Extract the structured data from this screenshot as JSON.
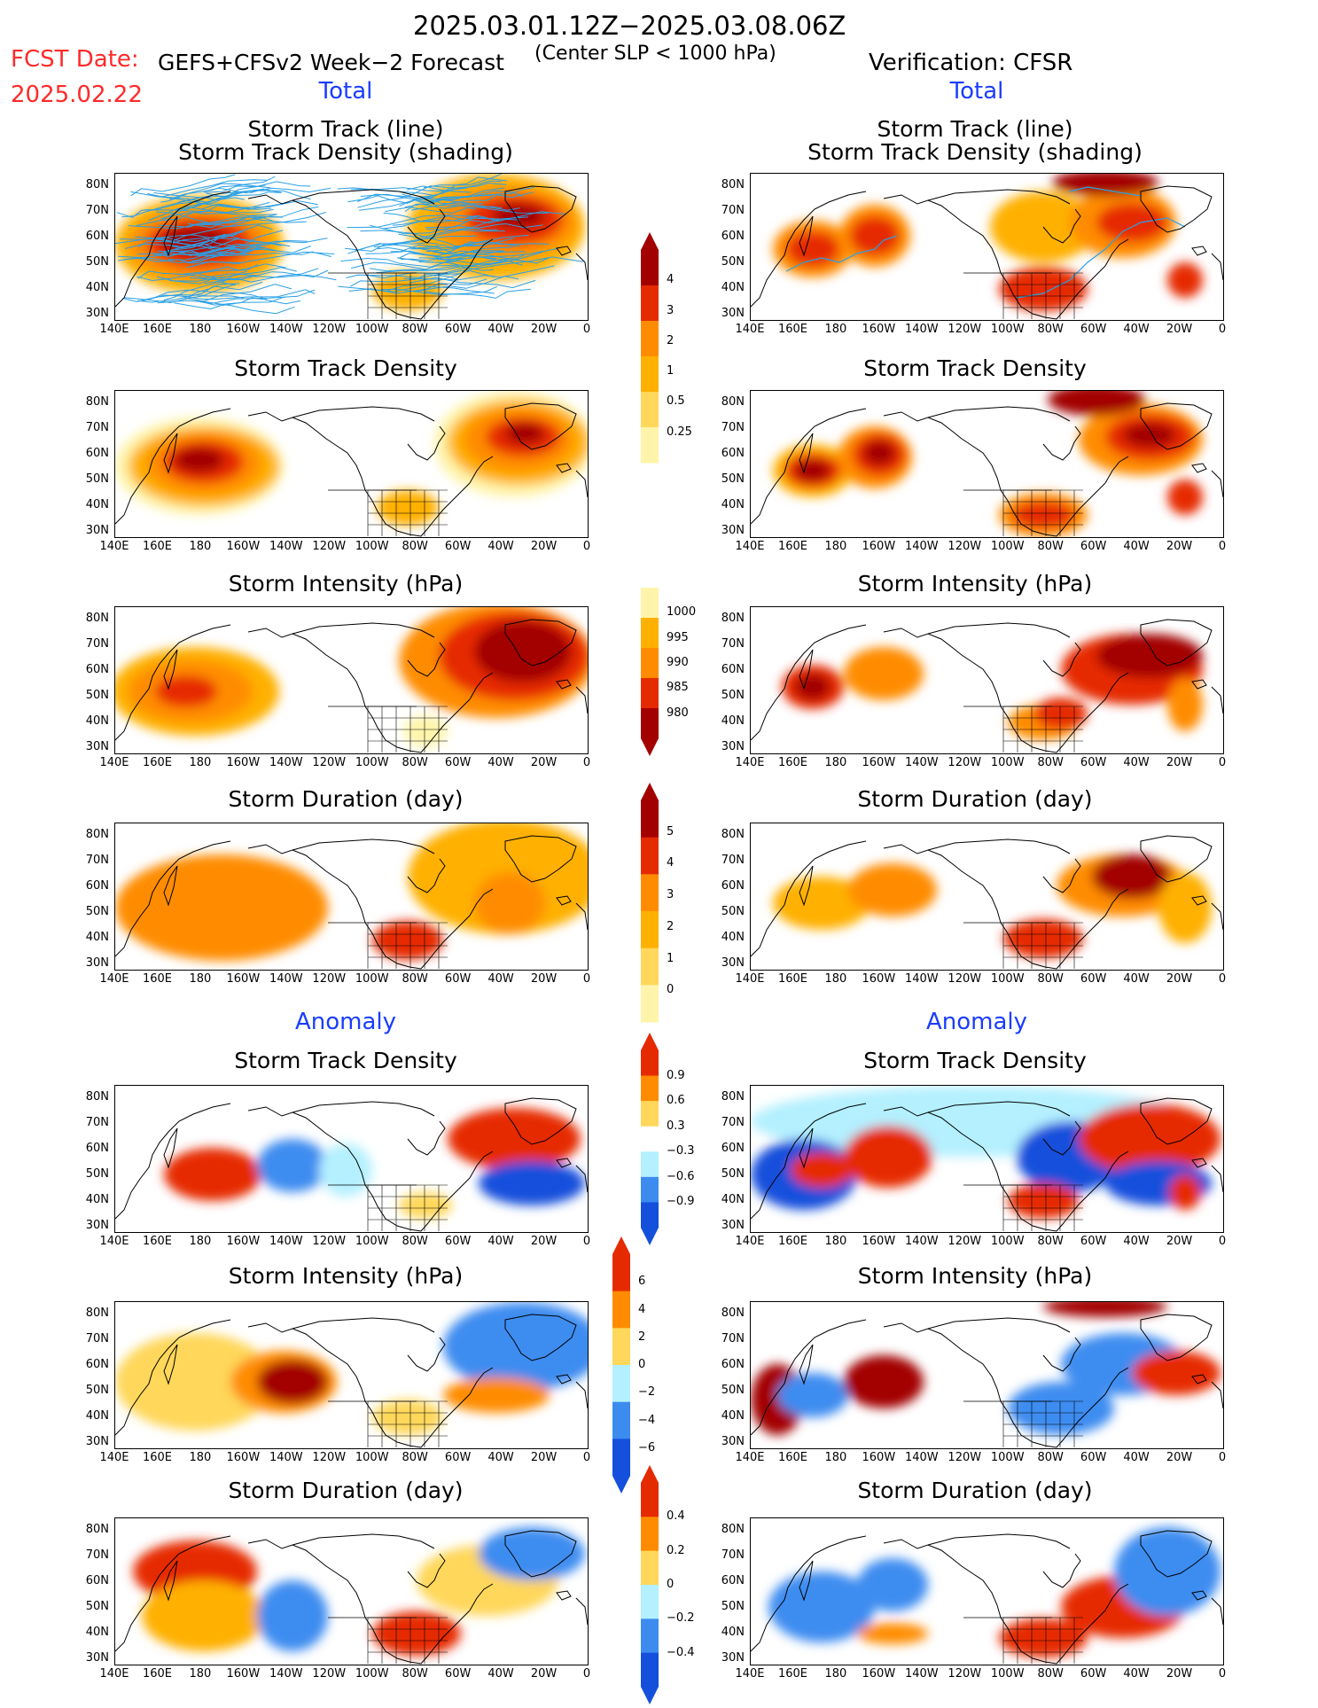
{
  "header": {
    "date_range": "2025.03.01.12Z−2025.03.08.06Z",
    "fcst_label": "FCST Date:",
    "fcst_date": "2025.02.22",
    "model": "GEFS+CFSv2 Week−2 Forecast",
    "criterion": "(Center SLP < 1000 hPa)",
    "verification": "Verification: CFSR"
  },
  "sections": {
    "total": "Total",
    "anomaly": "Anomaly"
  },
  "panel_titles": {
    "track": "Storm Track (line)",
    "track_sub": "Storm Track Density (shading)",
    "density": "Storm Track Density",
    "intensity": "Storm Intensity (hPa)",
    "duration": "Storm Duration (day)"
  },
  "axes": {
    "lat_labels": [
      "80N",
      "70N",
      "60N",
      "50N",
      "40N",
      "30N"
    ],
    "lon_labels": [
      "140E",
      "160E",
      "180",
      "160W",
      "140W",
      "120W",
      "100W",
      "80W",
      "60W",
      "40W",
      "20W",
      "0"
    ]
  },
  "colorbars": {
    "density_total": [
      "4",
      "3",
      "2",
      "1",
      "0.5",
      "0.25"
    ],
    "intensity_total": [
      "1000",
      "995",
      "990",
      "985",
      "980"
    ],
    "duration_total": [
      "5",
      "4",
      "3",
      "2",
      "1",
      "0"
    ],
    "density_anom": [
      "0.9",
      "0.6",
      "0.3",
      "−0.3",
      "−0.6",
      "−0.9"
    ],
    "intensity_anom": [
      "6",
      "4",
      "2",
      "0",
      "−2",
      "−4",
      "−6"
    ],
    "duration_anom": [
      "0.4",
      "0.2",
      "0",
      "−0.2",
      "−0.4"
    ]
  },
  "colors": {
    "dark_red": "#a30000",
    "red": "#e62a00",
    "orange": "#ff8c00",
    "light_orange": "#ffb000",
    "yellow": "#ffd75a",
    "pale_yellow": "#fff4aa",
    "light_blue": "#b4f0ff",
    "mid_blue": "#3c8cf0",
    "dark_blue": "#1450dc",
    "track_blue": "#2aa0e6"
  }
}
